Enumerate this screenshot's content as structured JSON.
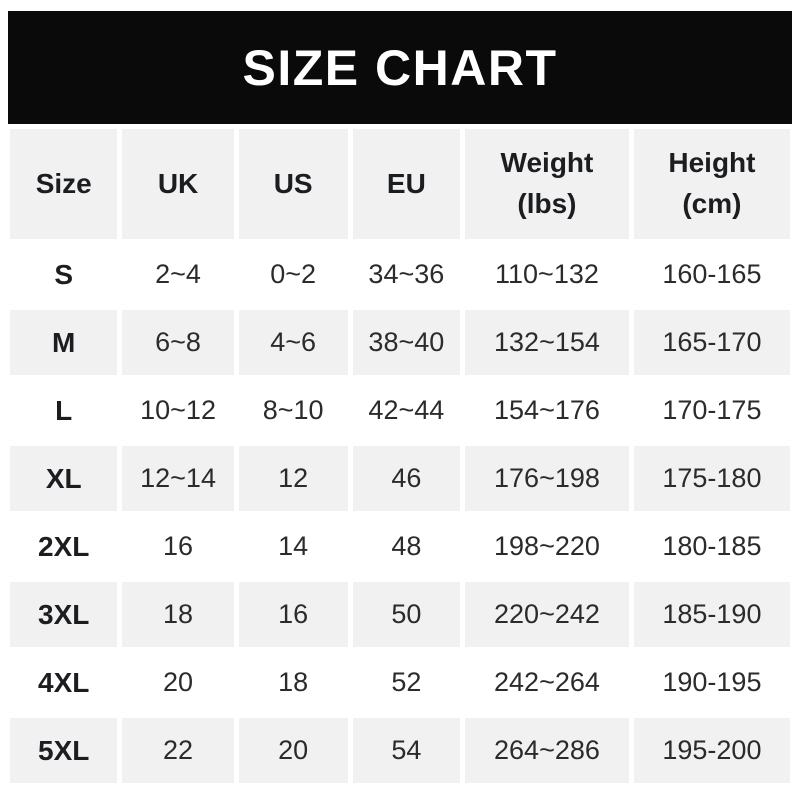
{
  "banner": {
    "title": "SIZE CHART"
  },
  "colors": {
    "banner_bg": "#0a0a0a",
    "banner_text": "#ffffff",
    "stripe": "#f1f1f1",
    "text": "#2b2b2b",
    "bold_text": "#1b1d21",
    "page_bg": "#ffffff"
  },
  "chart_data": {
    "type": "table",
    "title": "SIZE CHART",
    "columns": [
      {
        "key": "size",
        "label": "Size",
        "sub": ""
      },
      {
        "key": "uk",
        "label": "UK",
        "sub": ""
      },
      {
        "key": "us",
        "label": "US",
        "sub": ""
      },
      {
        "key": "eu",
        "label": "EU",
        "sub": ""
      },
      {
        "key": "weight",
        "label": "Weight",
        "sub": "(lbs)"
      },
      {
        "key": "height",
        "label": "Height",
        "sub": "(cm)"
      }
    ],
    "rows": [
      [
        "S",
        "2~4",
        "0~2",
        "34~36",
        "110~132",
        "160-165"
      ],
      [
        "M",
        "6~8",
        "4~6",
        "38~40",
        "132~154",
        "165-170"
      ],
      [
        "L",
        "10~12",
        "8~10",
        "42~44",
        "154~176",
        "170-175"
      ],
      [
        "XL",
        "12~14",
        "12",
        "46",
        "176~198",
        "175-180"
      ],
      [
        "2XL",
        "16",
        "14",
        "48",
        "198~220",
        "180-185"
      ],
      [
        "3XL",
        "18",
        "16",
        "50",
        "220~242",
        "185-190"
      ],
      [
        "4XL",
        "20",
        "18",
        "52",
        "242~264",
        "190-195"
      ],
      [
        "5XL",
        "22",
        "20",
        "54",
        "264~286",
        "195-200"
      ]
    ],
    "layout": {
      "striped": true,
      "stripe_color": "#f1f1f1",
      "header_background": "#f1f1f1"
    }
  }
}
